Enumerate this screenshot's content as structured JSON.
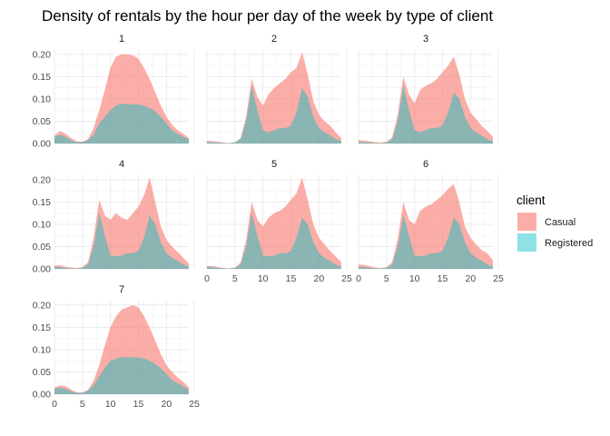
{
  "chart_data": {
    "type": "area",
    "title": "Density of rentals by the hour per day of the week by type of client",
    "xlabel": "",
    "ylabel": "",
    "xlim": [
      0,
      24
    ],
    "ylim": [
      0,
      0.21
    ],
    "x_ticks": [
      0,
      5,
      10,
      15,
      20,
      25
    ],
    "y_ticks": [
      0.0,
      0.05,
      0.1,
      0.15,
      0.2
    ],
    "y_tick_labels": [
      "0.00",
      "0.05",
      "0.10",
      "0.15",
      "0.20"
    ],
    "stacked": true,
    "grid": true,
    "legend": {
      "title": "client",
      "position": "right"
    },
    "series_names": [
      "Casual",
      "Registered"
    ],
    "colors": {
      "Casual": "#F8766D",
      "Registered": "#00BFC4"
    },
    "x": [
      0,
      1,
      2,
      3,
      4,
      5,
      6,
      7,
      8,
      9,
      10,
      11,
      12,
      13,
      14,
      15,
      16,
      17,
      18,
      19,
      20,
      21,
      22,
      23,
      24
    ],
    "panels": [
      {
        "label": "1",
        "registered": [
          0.015,
          0.02,
          0.015,
          0.007,
          0.003,
          0.003,
          0.008,
          0.02,
          0.045,
          0.06,
          0.075,
          0.085,
          0.09,
          0.088,
          0.088,
          0.088,
          0.085,
          0.08,
          0.072,
          0.06,
          0.045,
          0.03,
          0.022,
          0.015,
          0.01
        ],
        "total": [
          0.018,
          0.028,
          0.022,
          0.012,
          0.005,
          0.004,
          0.01,
          0.035,
          0.075,
          0.12,
          0.17,
          0.195,
          0.2,
          0.2,
          0.198,
          0.19,
          0.17,
          0.145,
          0.115,
          0.085,
          0.06,
          0.042,
          0.03,
          0.022,
          0.012
        ]
      },
      {
        "label": "2",
        "registered": [
          0.003,
          0.003,
          0.002,
          0.001,
          0.001,
          0.002,
          0.01,
          0.05,
          0.13,
          0.075,
          0.03,
          0.025,
          0.03,
          0.035,
          0.035,
          0.04,
          0.07,
          0.125,
          0.105,
          0.06,
          0.035,
          0.025,
          0.018,
          0.01,
          0.005
        ],
        "total": [
          0.006,
          0.005,
          0.004,
          0.002,
          0.001,
          0.003,
          0.012,
          0.06,
          0.145,
          0.105,
          0.085,
          0.11,
          0.125,
          0.135,
          0.145,
          0.16,
          0.17,
          0.205,
          0.155,
          0.095,
          0.065,
          0.05,
          0.04,
          0.025,
          0.012
        ]
      },
      {
        "label": "3",
        "registered": [
          0.003,
          0.003,
          0.002,
          0.001,
          0.001,
          0.002,
          0.01,
          0.05,
          0.13,
          0.075,
          0.03,
          0.025,
          0.03,
          0.035,
          0.035,
          0.04,
          0.07,
          0.115,
          0.1,
          0.06,
          0.035,
          0.025,
          0.018,
          0.01,
          0.005
        ],
        "total": [
          0.008,
          0.007,
          0.005,
          0.003,
          0.002,
          0.004,
          0.014,
          0.065,
          0.15,
          0.11,
          0.09,
          0.12,
          0.13,
          0.135,
          0.145,
          0.16,
          0.175,
          0.195,
          0.155,
          0.1,
          0.07,
          0.055,
          0.04,
          0.028,
          0.015
        ]
      },
      {
        "label": "4",
        "registered": [
          0.004,
          0.004,
          0.002,
          0.001,
          0.001,
          0.002,
          0.01,
          0.05,
          0.125,
          0.075,
          0.03,
          0.028,
          0.03,
          0.035,
          0.035,
          0.04,
          0.07,
          0.12,
          0.1,
          0.06,
          0.035,
          0.025,
          0.018,
          0.01,
          0.005
        ],
        "total": [
          0.008,
          0.008,
          0.005,
          0.003,
          0.002,
          0.004,
          0.015,
          0.07,
          0.155,
          0.12,
          0.11,
          0.125,
          0.115,
          0.11,
          0.125,
          0.14,
          0.165,
          0.205,
          0.15,
          0.095,
          0.065,
          0.05,
          0.038,
          0.025,
          0.012
        ]
      },
      {
        "label": "5",
        "registered": [
          0.004,
          0.004,
          0.002,
          0.001,
          0.001,
          0.002,
          0.01,
          0.05,
          0.125,
          0.075,
          0.03,
          0.028,
          0.03,
          0.035,
          0.035,
          0.04,
          0.07,
          0.115,
          0.1,
          0.06,
          0.035,
          0.025,
          0.018,
          0.01,
          0.005
        ],
        "total": [
          0.007,
          0.006,
          0.004,
          0.002,
          0.001,
          0.003,
          0.014,
          0.065,
          0.15,
          0.11,
          0.095,
          0.115,
          0.125,
          0.13,
          0.14,
          0.155,
          0.17,
          0.205,
          0.155,
          0.1,
          0.07,
          0.055,
          0.04,
          0.028,
          0.015
        ]
      },
      {
        "label": "6",
        "registered": [
          0.004,
          0.004,
          0.002,
          0.001,
          0.001,
          0.002,
          0.01,
          0.05,
          0.12,
          0.075,
          0.03,
          0.028,
          0.03,
          0.035,
          0.035,
          0.04,
          0.07,
          0.115,
          0.1,
          0.06,
          0.035,
          0.025,
          0.018,
          0.01,
          0.005
        ],
        "total": [
          0.01,
          0.009,
          0.006,
          0.003,
          0.002,
          0.004,
          0.015,
          0.068,
          0.15,
          0.11,
          0.1,
          0.13,
          0.14,
          0.145,
          0.155,
          0.165,
          0.18,
          0.19,
          0.15,
          0.095,
          0.07,
          0.055,
          0.042,
          0.035,
          0.02
        ]
      },
      {
        "label": "7",
        "registered": [
          0.012,
          0.015,
          0.012,
          0.006,
          0.003,
          0.003,
          0.008,
          0.02,
          0.04,
          0.06,
          0.075,
          0.08,
          0.083,
          0.083,
          0.083,
          0.082,
          0.08,
          0.075,
          0.068,
          0.058,
          0.045,
          0.032,
          0.025,
          0.018,
          0.01
        ],
        "total": [
          0.015,
          0.02,
          0.018,
          0.01,
          0.004,
          0.004,
          0.01,
          0.03,
          0.065,
          0.11,
          0.15,
          0.175,
          0.19,
          0.195,
          0.2,
          0.195,
          0.175,
          0.15,
          0.12,
          0.09,
          0.065,
          0.05,
          0.038,
          0.028,
          0.015
        ]
      }
    ]
  }
}
